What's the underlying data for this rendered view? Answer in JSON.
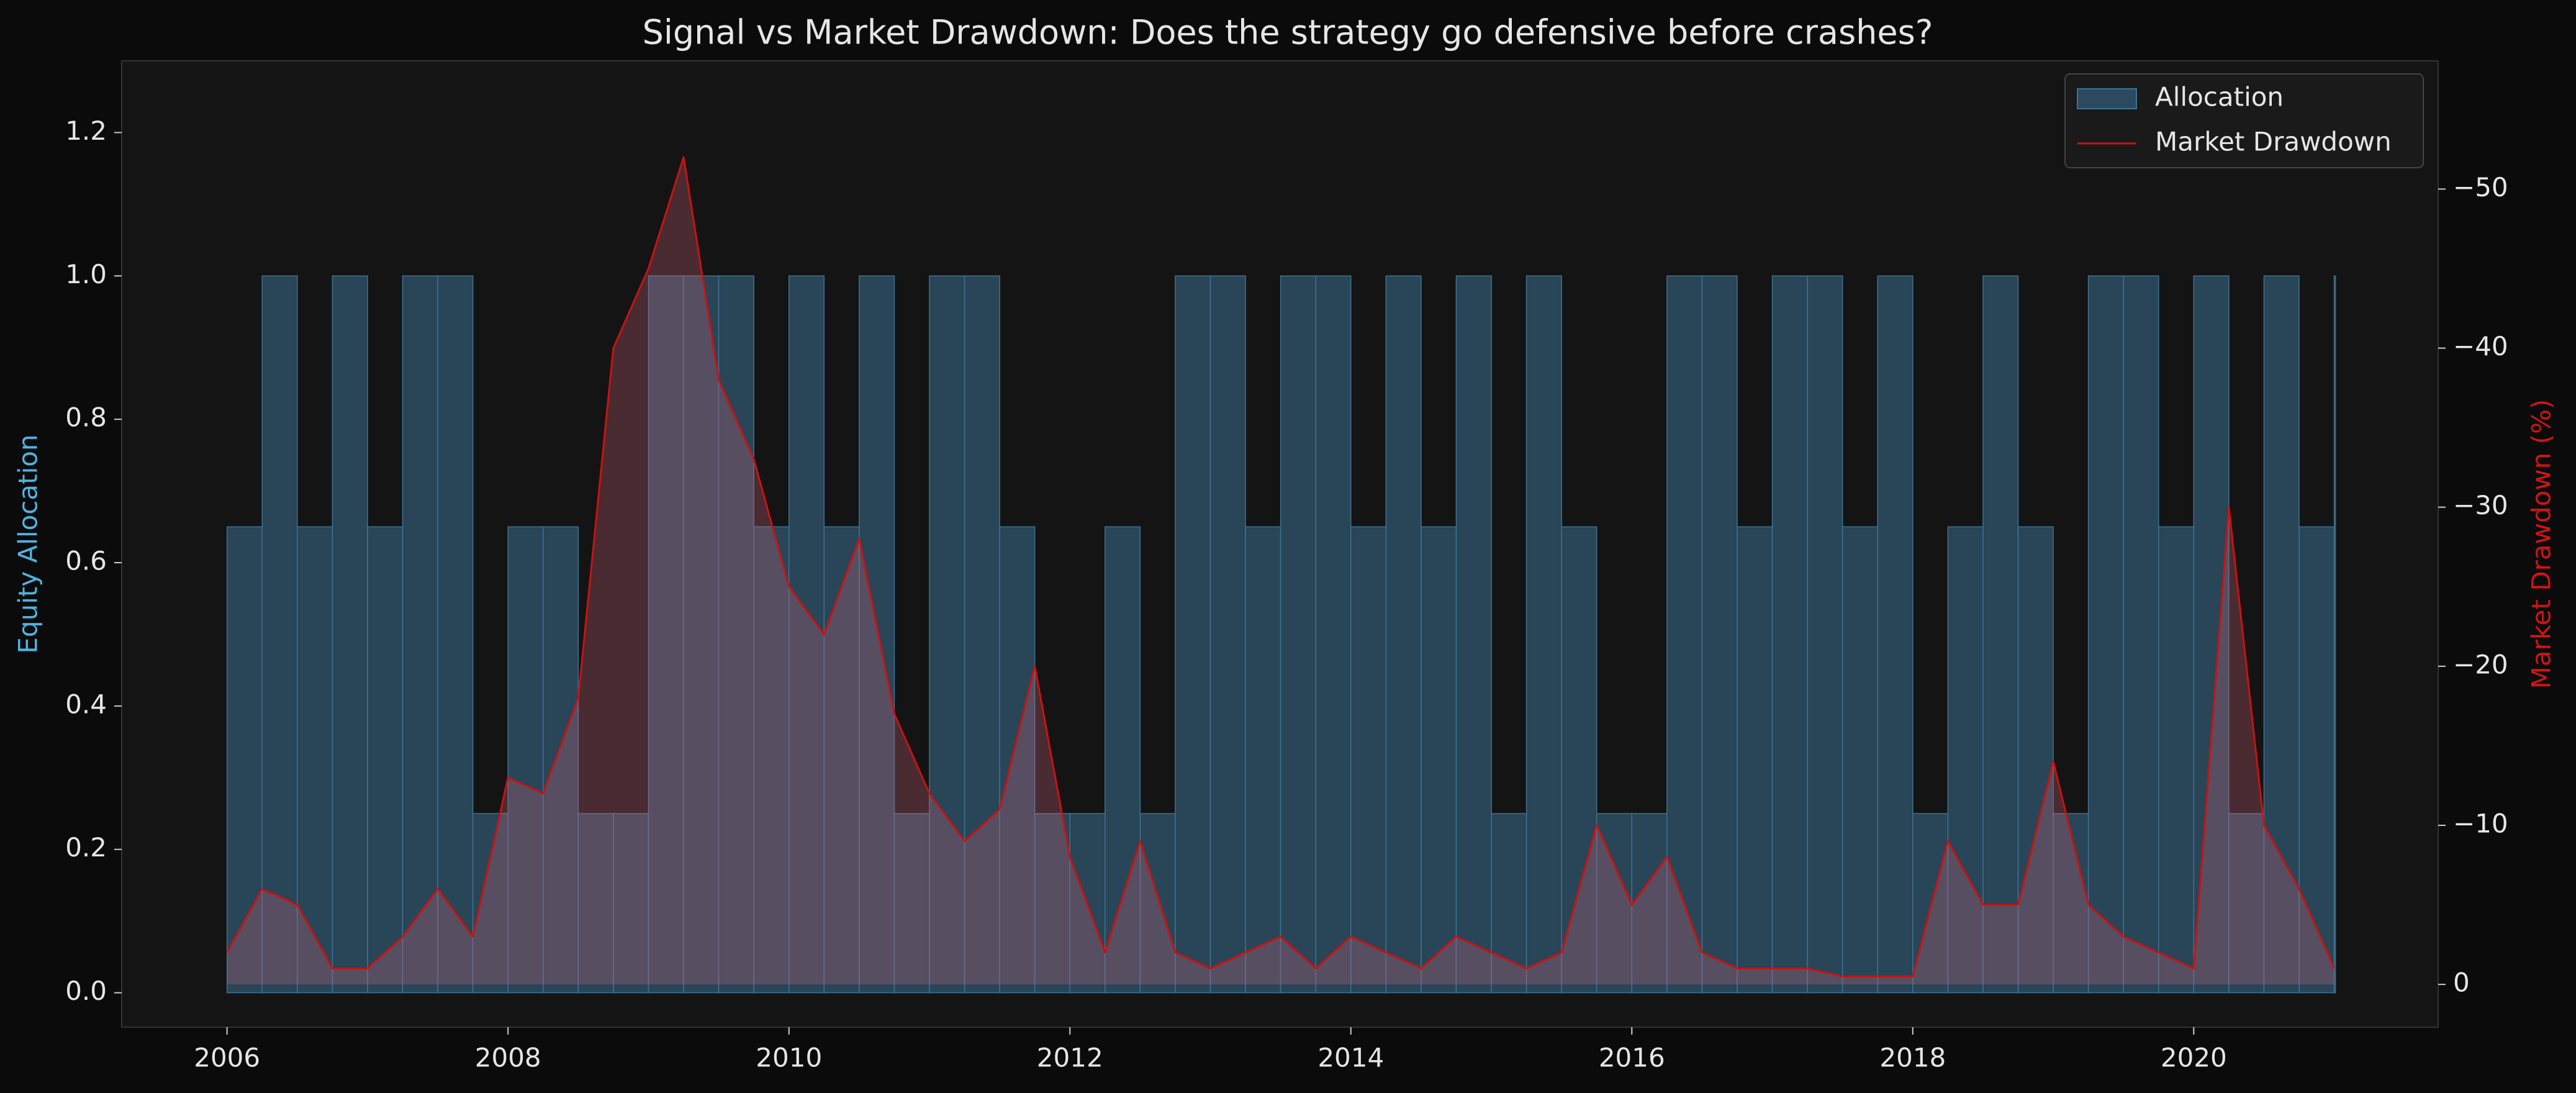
{
  "chart_data": {
    "type": "line",
    "title": "Signal vs Market Drawdown: Does the strategy go defensive before crashes?",
    "y_label": "Equity Allocation",
    "y2_label": "Market Drawdown (%)",
    "x": [
      2006.0,
      2006.25,
      2006.5,
      2006.75,
      2007.0,
      2007.25,
      2007.5,
      2007.75,
      2008.0,
      2008.25,
      2008.5,
      2008.75,
      2009.0,
      2009.25,
      2009.5,
      2009.75,
      2010.0,
      2010.25,
      2010.5,
      2010.75,
      2011.0,
      2011.25,
      2011.5,
      2011.75,
      2012.0,
      2012.25,
      2012.5,
      2012.75,
      2013.0,
      2013.25,
      2013.5,
      2013.75,
      2014.0,
      2014.25,
      2014.5,
      2014.75,
      2015.0,
      2015.25,
      2015.5,
      2015.75,
      2016.0,
      2016.25,
      2016.5,
      2016.75,
      2017.0,
      2017.25,
      2017.5,
      2017.75,
      2018.0,
      2018.25,
      2018.5,
      2018.75,
      2019.0,
      2019.25,
      2019.5,
      2019.75,
      2020.0,
      2020.25,
      2020.5,
      2020.75,
      2021.0
    ],
    "series": [
      {
        "name": "Allocation",
        "color": "#2b4a5f",
        "values": [
          0.65,
          1.0,
          0.65,
          1.0,
          0.65,
          1.0,
          1.0,
          0.25,
          0.65,
          0.65,
          0.25,
          0.25,
          1.0,
          1.0,
          1.0,
          0.65,
          1.0,
          0.65,
          1.0,
          0.25,
          1.0,
          1.0,
          0.65,
          0.25,
          0.25,
          0.65,
          0.25,
          1.0,
          1.0,
          0.65,
          1.0,
          1.0,
          0.65,
          1.0,
          0.65,
          1.0,
          0.25,
          1.0,
          0.65,
          0.25,
          0.25,
          1.0,
          1.0,
          0.65,
          1.0,
          1.0,
          0.65,
          1.0,
          0.25,
          0.65,
          1.0,
          0.65,
          0.25,
          1.0,
          1.0,
          0.65,
          1.0,
          0.25,
          1.0,
          0.65,
          1.0
        ]
      },
      {
        "name": "Market Drawdown",
        "color": "#cc1111",
        "axis": "y2",
        "values": [
          -2,
          -6,
          -5,
          -1,
          -1,
          -3,
          -6,
          -3,
          -13,
          -12,
          -18,
          -40,
          -45,
          -52,
          -38,
          -33,
          -25,
          -22,
          -28,
          -17,
          -12,
          -9,
          -11,
          -20,
          -8,
          -2,
          -9,
          -2,
          -1,
          -2,
          -3,
          -1,
          -3,
          -2,
          -1,
          -3,
          -2,
          -1,
          -2,
          -10,
          -5,
          -8,
          -2,
          -1,
          -1,
          -1,
          -0.5,
          -0.5,
          -0.5,
          -9,
          -5,
          -5,
          -14,
          -5,
          -3,
          -2,
          -1,
          -30,
          -10,
          -6,
          -1
        ]
      }
    ],
    "xlim": [
      2005.25,
      2021.74
    ],
    "xticks": [
      2006,
      2008,
      2010,
      2012,
      2014,
      2016,
      2018,
      2020
    ],
    "ylim": [
      -0.048,
      1.3
    ],
    "yticks": [
      {
        "value": 0,
        "label": "0.0"
      },
      0.2,
      0.4,
      0.6,
      0.8,
      {
        "value": 1,
        "label": "1.0"
      },
      1.2
    ],
    "y2lim": [
      2.69,
      -58.06
    ],
    "y2ticks": [
      0,
      {
        "value": -10,
        "label": "−10"
      },
      {
        "value": -20,
        "label": "−20"
      },
      {
        "value": -30,
        "label": "−30"
      },
      {
        "value": -40,
        "label": "−40"
      },
      {
        "value": -50,
        "label": "−50"
      }
    ],
    "legend": "upper right"
  }
}
